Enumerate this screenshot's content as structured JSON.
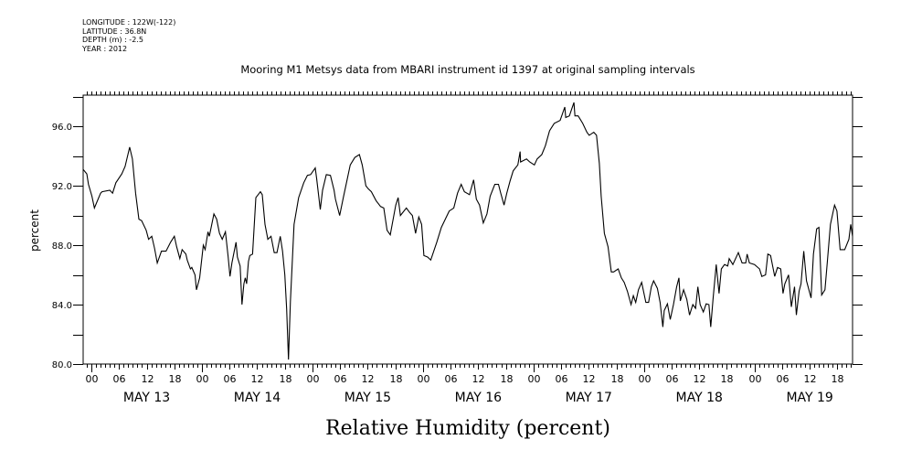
{
  "header": {
    "longitude": "LONGITUDE : 122W(-122)",
    "latitude": "LATITUDE : 36.8N",
    "depth": "DEPTH (m) : -2.5",
    "year": "YEAR : 2012"
  },
  "chart_data": {
    "type": "line",
    "title": "Mooring M1 Metsys data from MBARI instrument id 1397 at original sampling intervals",
    "xlabel": "Relative Humidity (percent)",
    "ylabel": "percent",
    "x_units": "hours since MAY 13 00:00 (2012)",
    "xlim": [
      -1.8,
      165.3
    ],
    "ylim": [
      80,
      98.1
    ],
    "yticks": [
      80,
      84,
      88,
      92,
      96
    ],
    "ytick_labels": [
      "80.0",
      "84.0",
      "88.0",
      "92.0",
      "96.0"
    ],
    "hour_tick_labels": [
      "00",
      "06",
      "12",
      "18"
    ],
    "day_labels": [
      "MAY 13",
      "MAY 14",
      "MAY 15",
      "MAY 16",
      "MAY 17",
      "MAY 18",
      "MAY 19"
    ],
    "grid": false,
    "color": "#000000",
    "series": [
      {
        "name": "Relative Humidity",
        "x": [
          -1.8,
          -1.0,
          -0.65,
          0.1,
          0.65,
          2.0,
          2.3,
          4.0,
          4.6,
          5.3,
          6.6,
          7.3,
          8.3,
          8.9,
          9.6,
          10.3,
          10.9,
          11.9,
          12.4,
          13.1,
          13.7,
          14.3,
          15.2,
          16.2,
          17.2,
          18.0,
          18.5,
          19.2,
          19.7,
          20.5,
          20.8,
          21.5,
          21.8,
          22.5,
          22.8,
          23.5,
          24.3,
          24.7,
          25.3,
          25.6,
          26.6,
          27.2,
          27.8,
          28.4,
          29.1,
          29.7,
          30.1,
          30.5,
          31.4,
          31.7,
          32.3,
          32.7,
          33.1,
          33.4,
          33.7,
          34.1,
          34.4,
          35.0,
          35.7,
          36.7,
          37.1,
          37.7,
          38.3,
          39.0,
          39.7,
          40.3,
          41.0,
          41.5,
          42.0,
          42.4,
          42.8,
          43.2,
          44.0,
          45.0,
          46.1,
          46.9,
          47.6,
          48.6,
          48.9,
          49.7,
          50.2,
          51.0,
          51.9,
          52.7,
          53.0,
          53.9,
          54.7,
          56.2,
          57.2,
          58.2,
          58.8,
          59.6,
          60.1,
          60.8,
          61.8,
          62.8,
          63.5,
          64.2,
          64.9,
          66.1,
          66.6,
          67.1,
          68.4,
          69.1,
          69.7,
          70.4,
          71.1,
          71.7,
          72.2,
          73.0,
          73.7,
          75.0,
          76.0,
          77.7,
          78.7,
          79.5,
          80.3,
          81.0,
          82.1,
          83.0,
          83.6,
          84.3,
          85.1,
          85.9,
          86.6,
          87.6,
          88.4,
          88.9,
          89.6,
          90.2,
          90.9,
          91.6,
          92.6,
          93.1,
          93.2,
          94.5,
          95.2,
          96.2,
          96.8,
          97.8,
          98.6,
          99.5,
          100.5,
          101.8,
          102.8,
          103.0,
          103.8,
          104.8,
          105.0,
          105.7,
          106.7,
          107.6,
          108.1,
          109.1,
          109.7,
          110.3,
          110.7,
          111.4,
          112.2,
          112.9,
          113.4,
          114.4,
          115.1,
          115.7,
          116.4,
          117.2,
          117.7,
          118.2,
          118.8,
          119.5,
          120.4,
          121.0,
          121.6,
          122.1,
          122.9,
          123.5,
          124.1,
          124.4,
          125.1,
          125.7,
          126.4,
          127.1,
          127.6,
          127.9,
          128.6,
          129.3,
          129.9,
          130.6,
          131.2,
          131.7,
          132.2,
          132.9,
          133.5,
          134.1,
          134.5,
          135.0,
          135.7,
          136.3,
          136.8,
          137.5,
          138.2,
          138.5,
          139.3,
          140.5,
          141.3,
          142.1,
          142.4,
          142.9,
          144.0,
          145.1,
          145.6,
          146.4,
          146.9,
          147.5,
          148.4,
          149.0,
          149.7,
          150.2,
          150.6,
          151.4,
          152.0,
          152.7,
          153.1,
          153.7,
          154.1,
          154.7,
          155.3,
          156.3,
          156.8,
          157.5,
          158.0,
          158.6,
          159.3,
          159.8,
          160.5,
          161.4,
          161.9,
          162.6,
          163.6,
          164.5,
          164.9,
          165.3
        ],
        "y": [
          93.1,
          92.8,
          92.1,
          91.3,
          90.5,
          91.5,
          91.6,
          91.7,
          91.5,
          92.2,
          92.8,
          93.3,
          94.6,
          93.8,
          91.5,
          89.75,
          89.65,
          89.0,
          88.4,
          88.6,
          87.8,
          86.8,
          87.6,
          87.6,
          88.2,
          88.6,
          87.9,
          87.1,
          87.7,
          87.4,
          87.0,
          86.4,
          86.5,
          86.0,
          85.0,
          85.8,
          88.0,
          87.7,
          88.9,
          88.6,
          90.1,
          89.75,
          88.8,
          88.4,
          88.9,
          87.2,
          85.9,
          86.8,
          88.2,
          87.2,
          86.6,
          84.0,
          85.4,
          85.8,
          85.4,
          86.9,
          87.3,
          87.4,
          91.2,
          91.6,
          91.4,
          89.4,
          88.4,
          88.6,
          87.5,
          87.5,
          88.6,
          87.6,
          86.0,
          83.7,
          80.3,
          84.2,
          89.4,
          91.2,
          92.2,
          92.7,
          92.75,
          93.2,
          92.5,
          90.4,
          91.7,
          92.75,
          92.7,
          91.7,
          91.1,
          90.0,
          91.2,
          93.4,
          93.9,
          94.1,
          93.4,
          92.0,
          91.8,
          91.6,
          91.0,
          90.6,
          90.5,
          89.0,
          88.7,
          90.7,
          91.2,
          90.0,
          90.5,
          90.2,
          90.0,
          88.8,
          89.9,
          89.4,
          87.3,
          87.2,
          87.0,
          88.2,
          89.2,
          90.3,
          90.5,
          91.5,
          92.1,
          91.6,
          91.4,
          92.4,
          91.1,
          90.7,
          89.5,
          90.1,
          91.3,
          92.1,
          92.1,
          91.5,
          90.7,
          91.5,
          92.3,
          93.0,
          93.4,
          94.3,
          93.6,
          93.8,
          93.6,
          93.4,
          93.8,
          94.1,
          94.7,
          95.7,
          96.2,
          96.4,
          97.3,
          96.6,
          96.7,
          97.6,
          96.7,
          96.7,
          96.2,
          95.6,
          95.4,
          95.6,
          95.4,
          93.5,
          91.3,
          88.8,
          87.9,
          86.2,
          86.2,
          86.4,
          85.8,
          85.5,
          84.9,
          84.0,
          84.6,
          84.15,
          85.0,
          85.5,
          84.15,
          84.15,
          85.2,
          85.6,
          85.1,
          84.15,
          82.5,
          83.6,
          84.05,
          83.0,
          84.0,
          85.2,
          85.8,
          84.25,
          85.0,
          84.35,
          83.3,
          84.0,
          83.75,
          85.2,
          84.0,
          83.5,
          84.05,
          84.0,
          82.5,
          84.35,
          86.7,
          84.75,
          86.4,
          86.7,
          86.6,
          87.1,
          86.7,
          87.5,
          86.8,
          86.8,
          87.4,
          86.8,
          86.7,
          86.4,
          85.9,
          86.0,
          87.4,
          87.3,
          85.9,
          86.5,
          86.4,
          84.75,
          85.4,
          86.0,
          83.85,
          85.2,
          83.3,
          84.9,
          85.4,
          87.6,
          85.6,
          84.45,
          87.4,
          89.1,
          89.2,
          84.65,
          85.0,
          86.8,
          89.4,
          90.7,
          90.3,
          87.7,
          87.7,
          88.4,
          89.4,
          88.6
        ]
      }
    ]
  }
}
